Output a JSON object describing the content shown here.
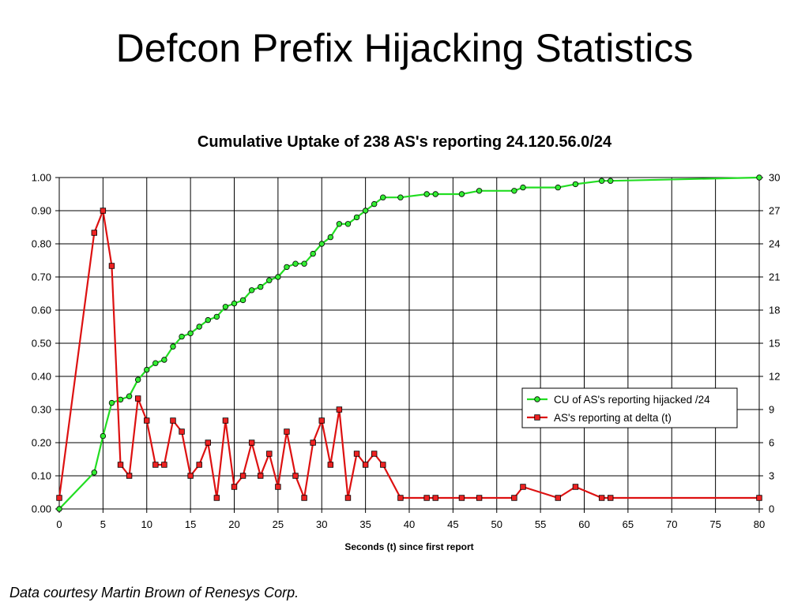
{
  "slide": {
    "title": "Defcon Prefix Hijacking Statistics",
    "credit": "Data courtesy Martin Brown of Renesys Corp."
  },
  "colors": {
    "cumulative": "#22dd22",
    "cumulative_marker": "#33ee33",
    "delta": "#dd1111",
    "delta_marker": "#ee2222"
  },
  "chart_data": {
    "type": "line",
    "title": "Cumulative Uptake of 238 AS's reporting 24.120.56.0/24",
    "xlabel": "Seconds (t) since first report",
    "xlim": [
      0,
      80
    ],
    "ylim_left": [
      0,
      1
    ],
    "ylim_right": [
      0,
      30
    ],
    "x_ticks": [
      "0",
      "5",
      "10",
      "15",
      "20",
      "25",
      "30",
      "35",
      "40",
      "45",
      "50",
      "55",
      "60",
      "65",
      "70",
      "75",
      "80"
    ],
    "y_left_ticks": [
      "0.00",
      "0.10",
      "0.20",
      "0.30",
      "0.40",
      "0.50",
      "0.60",
      "0.70",
      "0.80",
      "0.90",
      "1.00"
    ],
    "y_right_ticks": [
      "0",
      "3",
      "6",
      "9",
      "12",
      "15",
      "18",
      "21",
      "24",
      "27",
      "30"
    ],
    "grid": true,
    "legend_position": "right-middle",
    "series": [
      {
        "name": "CU of AS's reporting hijacked /24",
        "axis": "left",
        "marker": "circle",
        "x": [
          0,
          4,
          5,
          6,
          7,
          8,
          9,
          10,
          11,
          12,
          13,
          14,
          15,
          16,
          17,
          18,
          19,
          20,
          21,
          22,
          23,
          24,
          25,
          26,
          27,
          28,
          29,
          30,
          31,
          32,
          33,
          34,
          35,
          36,
          37,
          39,
          42,
          43,
          46,
          48,
          52,
          53,
          57,
          59,
          62,
          63,
          80
        ],
        "y": [
          0.0,
          0.11,
          0.22,
          0.32,
          0.33,
          0.34,
          0.39,
          0.42,
          0.44,
          0.45,
          0.49,
          0.52,
          0.53,
          0.55,
          0.57,
          0.58,
          0.61,
          0.62,
          0.63,
          0.66,
          0.67,
          0.69,
          0.7,
          0.73,
          0.74,
          0.74,
          0.77,
          0.8,
          0.82,
          0.86,
          0.86,
          0.88,
          0.9,
          0.92,
          0.94,
          0.94,
          0.95,
          0.95,
          0.95,
          0.96,
          0.96,
          0.97,
          0.97,
          0.98,
          0.99,
          0.99,
          1.0
        ]
      },
      {
        "name": "AS's reporting at delta (t)",
        "axis": "right",
        "marker": "square",
        "x": [
          0,
          4,
          5,
          6,
          7,
          8,
          9,
          10,
          11,
          12,
          13,
          14,
          15,
          16,
          17,
          18,
          19,
          20,
          21,
          22,
          23,
          24,
          25,
          26,
          27,
          28,
          29,
          30,
          31,
          32,
          33,
          34,
          35,
          36,
          37,
          39,
          42,
          43,
          46,
          48,
          52,
          53,
          57,
          59,
          62,
          63,
          80
        ],
        "y": [
          1,
          25,
          27,
          22,
          4,
          3,
          10,
          8,
          4,
          4,
          8,
          7,
          3,
          4,
          6,
          1,
          8,
          2,
          3,
          6,
          3,
          5,
          2,
          7,
          3,
          1,
          6,
          8,
          4,
          9,
          1,
          5,
          4,
          5,
          4,
          1,
          1,
          1,
          1,
          1,
          1,
          2,
          1,
          2,
          1,
          1,
          1
        ]
      }
    ]
  }
}
